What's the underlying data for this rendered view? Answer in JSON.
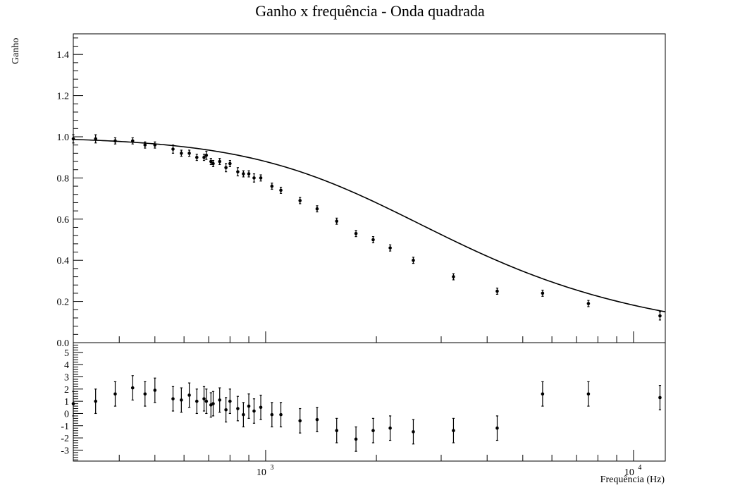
{
  "chart_data": [
    {
      "type": "scatter",
      "title": "Ganho x frequência - Onda quadrada",
      "xlabel": "Frequência (Hz)",
      "ylabel": "Ganho",
      "x_scale": "log",
      "xlim": [
        300,
        12200
      ],
      "ylim": [
        0,
        1.5
      ],
      "y_ticks": [
        {
          "value": 0.0,
          "label": "0.0"
        },
        {
          "value": 0.2,
          "label": "0.2"
        },
        {
          "value": 0.4,
          "label": "0.4"
        },
        {
          "value": 0.6,
          "label": "0.6"
        },
        {
          "value": 0.8,
          "label": "0.8"
        },
        {
          "value": 1.0,
          "label": "1.0"
        },
        {
          "value": 1.2,
          "label": "1.2"
        },
        {
          "value": 1.4,
          "label": "1.4"
        }
      ],
      "x_ticks": [
        {
          "value": 1000,
          "base": "10",
          "exp": "3"
        },
        {
          "value": 10000,
          "base": "10",
          "exp": "4"
        }
      ],
      "grid": false,
      "series": [
        {
          "x": [
            300,
            345,
            390,
            435,
            470,
            500,
            560,
            590,
            620,
            650,
            680,
            690,
            710,
            720,
            750,
            780,
            800,
            840,
            870,
            900,
            930,
            970,
            1040,
            1100,
            1240,
            1380,
            1560,
            1760,
            1960,
            2180,
            2520,
            3240,
            4260,
            5660,
            7540,
            11800
          ],
          "y": [
            0.99,
            0.99,
            0.98,
            0.98,
            0.96,
            0.96,
            0.94,
            0.92,
            0.92,
            0.9,
            0.9,
            0.91,
            0.88,
            0.87,
            0.88,
            0.85,
            0.87,
            0.83,
            0.82,
            0.82,
            0.8,
            0.8,
            0.76,
            0.74,
            0.69,
            0.65,
            0.59,
            0.53,
            0.5,
            0.46,
            0.4,
            0.32,
            0.25,
            0.24,
            0.19,
            0.13
          ],
          "y_err": [
            0.02,
            0.02,
            0.015,
            0.015,
            0.015,
            0.015,
            0.02,
            0.015,
            0.015,
            0.015,
            0.015,
            0.02,
            0.015,
            0.015,
            0.015,
            0.02,
            0.015,
            0.02,
            0.015,
            0.015,
            0.02,
            0.015,
            0.015,
            0.015,
            0.015,
            0.015,
            0.015,
            0.015,
            0.015,
            0.015,
            0.015,
            0.015,
            0.015,
            0.015,
            0.015,
            0.02
          ]
        }
      ],
      "fit_curve": {
        "function": "1/sqrt(1+(f/fc)^2)",
        "fc": 1850
      }
    },
    {
      "type": "scatter",
      "title": "",
      "xlabel": "",
      "ylabel": "",
      "x_scale": "log",
      "xlim": [
        300,
        12200
      ],
      "ylim": [
        -3.9,
        5.8
      ],
      "y_ticks": [
        {
          "value": -3,
          "label": "-3"
        },
        {
          "value": -2,
          "label": "-2"
        },
        {
          "value": -1,
          "label": "-1"
        },
        {
          "value": 0,
          "label": "0"
        },
        {
          "value": 1,
          "label": "1"
        },
        {
          "value": 2,
          "label": "2"
        },
        {
          "value": 3,
          "label": "3"
        },
        {
          "value": 4,
          "label": "4"
        },
        {
          "value": 5,
          "label": "5"
        }
      ],
      "grid": false,
      "series": [
        {
          "x": [
            300,
            345,
            390,
            435,
            470,
            500,
            560,
            590,
            620,
            650,
            680,
            690,
            710,
            720,
            750,
            780,
            800,
            840,
            870,
            900,
            930,
            970,
            1040,
            1100,
            1240,
            1380,
            1560,
            1760,
            1960,
            2180,
            2520,
            3240,
            4260,
            5660,
            7540,
            11800
          ],
          "y": [
            0.8,
            1.0,
            1.6,
            2.1,
            1.6,
            1.9,
            1.2,
            1.1,
            1.5,
            1.0,
            1.2,
            1.0,
            0.7,
            0.8,
            1.1,
            0.3,
            1.0,
            0.4,
            -0.1,
            0.6,
            0.2,
            0.5,
            -0.1,
            -0.1,
            -0.6,
            -0.5,
            -1.4,
            -2.1,
            -1.4,
            -1.2,
            -1.5,
            -1.4,
            -1.2,
            1.6,
            1.6,
            1.3
          ],
          "y_err": [
            1.0,
            1.0,
            1.0,
            1.0,
            1.0,
            1.0,
            1.0,
            1.0,
            1.0,
            1.0,
            1.0,
            1.0,
            1.0,
            1.0,
            1.0,
            1.0,
            1.0,
            1.0,
            1.0,
            1.0,
            1.0,
            1.0,
            1.0,
            1.0,
            1.0,
            1.0,
            1.0,
            1.0,
            1.0,
            1.0,
            1.0,
            1.0,
            1.0,
            1.0,
            1.0,
            1.0
          ]
        }
      ]
    }
  ]
}
